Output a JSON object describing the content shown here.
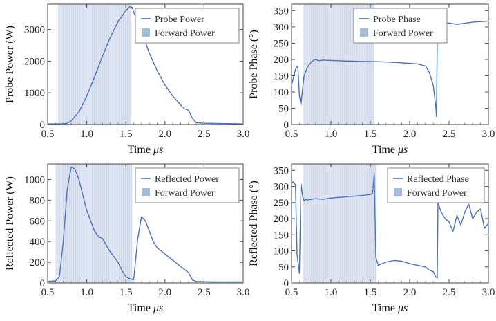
{
  "figure": {
    "title": ""
  },
  "colors": {
    "line": "#4a72b8",
    "fill": "#dfe5f1",
    "fill_edge": "#c3cee4",
    "legend_swatch": "#a9bbdb"
  },
  "chart_data": [
    {
      "id": "probe-power",
      "type": "line",
      "xlabel": "Time μs",
      "ylabel": "Probe Power (W)",
      "xlim": [
        0.5,
        3.0
      ],
      "ylim": [
        0,
        3800
      ],
      "xticks": [
        "0.5",
        "1.0",
        "1.5",
        "2.0",
        "2.5",
        "3.0"
      ],
      "xtick_values": [
        0.5,
        1.0,
        1.5,
        2.0,
        2.5,
        3.0
      ],
      "yticks": [
        "0",
        "1000",
        "2000",
        "3000"
      ],
      "ytick_values": [
        0,
        1000,
        2000,
        3000
      ],
      "legend": [
        "Probe Power",
        "Forward Power"
      ],
      "legend_position": "top-right",
      "forward_power_pulse": {
        "start": 0.63,
        "end": 1.57
      },
      "series": [
        {
          "name": "Probe Power",
          "x": [
            0.5,
            0.7,
            0.75,
            0.8,
            0.85,
            0.9,
            1.0,
            1.1,
            1.2,
            1.3,
            1.4,
            1.5,
            1.55,
            1.58,
            1.6,
            1.7,
            1.8,
            1.9,
            2.0,
            2.1,
            2.2,
            2.25,
            2.3,
            2.35,
            2.4,
            2.5,
            2.7,
            3.0
          ],
          "y": [
            20,
            20,
            40,
            120,
            260,
            400,
            900,
            1500,
            2150,
            2750,
            3250,
            3600,
            3720,
            3700,
            3550,
            2950,
            2250,
            1700,
            1250,
            900,
            620,
            500,
            450,
            200,
            60,
            40,
            30,
            20
          ]
        }
      ]
    },
    {
      "id": "probe-phase",
      "type": "line",
      "xlabel": "Time μs",
      "ylabel": "Probe Phase (°)",
      "xlim": [
        0.5,
        3.0
      ],
      "ylim": [
        0,
        370
      ],
      "xticks": [
        "0.5",
        "1.0",
        "1.5",
        "2.0",
        "2.5",
        "3.0"
      ],
      "xtick_values": [
        0.5,
        1.0,
        1.5,
        2.0,
        2.5,
        3.0
      ],
      "yticks": [
        "0",
        "50",
        "100",
        "150",
        "200",
        "250",
        "300",
        "350"
      ],
      "ytick_values": [
        0,
        50,
        100,
        150,
        200,
        250,
        300,
        350
      ],
      "legend": [
        "Probe Phase",
        "Forward Power"
      ],
      "legend_position": "top-center",
      "forward_power_pulse": {
        "start": 0.65,
        "end": 1.55
      },
      "series": [
        {
          "name": "Probe Phase",
          "x": [
            0.5,
            0.55,
            0.58,
            0.6,
            0.62,
            0.64,
            0.66,
            0.7,
            0.75,
            0.8,
            0.85,
            0.9,
            1.0,
            1.2,
            1.4,
            1.6,
            1.8,
            2.0,
            2.1,
            2.2,
            2.25,
            2.3,
            2.33,
            2.34,
            2.35,
            2.36,
            2.38,
            2.4,
            2.5,
            2.6,
            2.8,
            3.0
          ],
          "y": [
            120,
            170,
            180,
            90,
            60,
            110,
            150,
            175,
            192,
            200,
            196,
            198,
            197,
            195,
            194,
            193,
            191,
            188,
            186,
            180,
            160,
            120,
            60,
            25,
            250,
            355,
            320,
            310,
            312,
            308,
            315,
            318
          ]
        }
      ]
    },
    {
      "id": "reflected-power",
      "type": "line",
      "xlabel": "Time μs",
      "ylabel": "Reflected Power (W)",
      "xlim": [
        0.5,
        3.0
      ],
      "ylim": [
        0,
        1150
      ],
      "xticks": [
        "0.5",
        "1.0",
        "1.5",
        "2.0",
        "2.5",
        "3.0"
      ],
      "xtick_values": [
        0.5,
        1.0,
        1.5,
        2.0,
        2.5,
        3.0
      ],
      "yticks": [
        "0",
        "200",
        "400",
        "600",
        "800",
        "1000"
      ],
      "ytick_values": [
        0,
        200,
        400,
        600,
        800,
        1000
      ],
      "legend": [
        "Reflected Power",
        "Forward Power"
      ],
      "legend_position": "top-right",
      "forward_power_pulse": {
        "start": 0.6,
        "end": 1.58
      },
      "series": [
        {
          "name": "Reflected Power",
          "x": [
            0.5,
            0.6,
            0.65,
            0.7,
            0.75,
            0.8,
            0.85,
            0.9,
            0.95,
            1.0,
            1.05,
            1.1,
            1.15,
            1.2,
            1.3,
            1.4,
            1.45,
            1.5,
            1.55,
            1.6,
            1.65,
            1.7,
            1.75,
            1.8,
            1.85,
            1.9,
            2.0,
            2.1,
            2.2,
            2.3,
            2.35,
            2.4,
            2.6,
            2.8,
            3.0
          ],
          "y": [
            15,
            20,
            60,
            400,
            900,
            1120,
            1100,
            1000,
            850,
            700,
            600,
            500,
            450,
            430,
            300,
            200,
            120,
            60,
            40,
            30,
            420,
            640,
            600,
            500,
            400,
            340,
            280,
            220,
            160,
            100,
            30,
            15,
            10,
            10,
            10
          ]
        }
      ]
    },
    {
      "id": "reflected-phase",
      "type": "line",
      "xlabel": "Time μs",
      "ylabel": "Reflected Phase (°)",
      "xlim": [
        0.5,
        3.0
      ],
      "ylim": [
        0,
        370
      ],
      "xticks": [
        "0.5",
        "1.0",
        "1.5",
        "2.0",
        "2.5",
        "3.0"
      ],
      "xtick_values": [
        0.5,
        1.0,
        1.5,
        2.0,
        2.5,
        3.0
      ],
      "yticks": [
        "0",
        "50",
        "100",
        "150",
        "200",
        "250",
        "300",
        "350"
      ],
      "ytick_values": [
        0,
        50,
        100,
        150,
        200,
        250,
        300,
        350
      ],
      "legend": [
        "Reflected Phase",
        "Forward Power"
      ],
      "legend_position": "top-right",
      "forward_power_pulse": {
        "start": 0.65,
        "end": 1.58
      },
      "series": [
        {
          "name": "Reflected Phase",
          "x": [
            0.5,
            0.52,
            0.55,
            0.57,
            0.6,
            0.62,
            0.64,
            0.66,
            0.68,
            0.7,
            0.8,
            0.9,
            1.0,
            1.1,
            1.2,
            1.3,
            1.4,
            1.5,
            1.53,
            1.55,
            1.57,
            1.6,
            1.7,
            1.8,
            1.9,
            2.0,
            2.1,
            2.2,
            2.25,
            2.3,
            2.33,
            2.35,
            2.36,
            2.4,
            2.45,
            2.5,
            2.55,
            2.6,
            2.65,
            2.7,
            2.75,
            2.8,
            2.85,
            2.9,
            2.95,
            3.0
          ],
          "y": [
            310,
            315,
            305,
            90,
            30,
            310,
            270,
            255,
            260,
            258,
            262,
            260,
            264,
            266,
            268,
            270,
            272,
            275,
            280,
            340,
            80,
            55,
            65,
            70,
            68,
            60,
            55,
            50,
            40,
            35,
            20,
            15,
            250,
            220,
            200,
            190,
            160,
            210,
            180,
            220,
            245,
            200,
            220,
            230,
            170,
            185
          ]
        }
      ]
    }
  ]
}
